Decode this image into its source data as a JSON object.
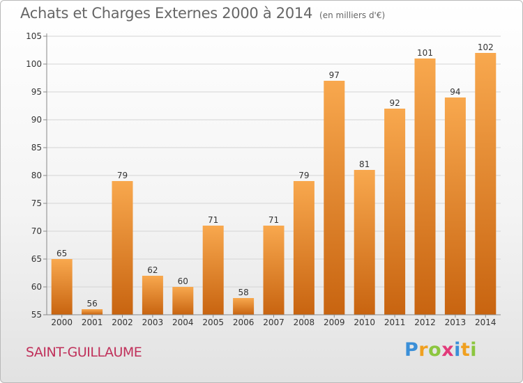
{
  "header": {
    "title": "Achats et Charges Externes 2000 à 2014",
    "unit": "(en milliers d'€)"
  },
  "footer": {
    "commune": "SAINT-GUILLAUME",
    "logo": "Proxiti"
  },
  "colors": {
    "bar_light": "#f8a84e",
    "bar_dark": "#c86410",
    "axis": "#888888",
    "grid": "#d4d4d4",
    "text": "#333333"
  },
  "chart_data": {
    "type": "bar",
    "categories": [
      "2000",
      "2001",
      "2002",
      "2003",
      "2004",
      "2005",
      "2006",
      "2007",
      "2008",
      "2009",
      "2010",
      "2011",
      "2012",
      "2013",
      "2014"
    ],
    "values": [
      65,
      56,
      79,
      62,
      60,
      71,
      58,
      71,
      79,
      97,
      81,
      92,
      101,
      94,
      102
    ],
    "ylim": [
      55,
      105
    ],
    "yticks": [
      55,
      60,
      65,
      70,
      75,
      80,
      85,
      90,
      95,
      100,
      105
    ],
    "grid": true,
    "legend": "none"
  }
}
